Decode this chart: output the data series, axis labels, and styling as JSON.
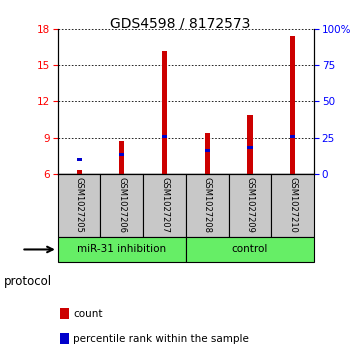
{
  "title": "GDS4598 / 8172573",
  "samples": [
    "GSM1027205",
    "GSM1027206",
    "GSM1027207",
    "GSM1027208",
    "GSM1027209",
    "GSM1027210"
  ],
  "red_values": [
    6.3,
    8.7,
    16.2,
    9.4,
    10.9,
    17.4
  ],
  "blue_values": [
    7.2,
    7.6,
    9.1,
    7.9,
    8.2,
    9.1
  ],
  "y_min": 6,
  "y_max": 18,
  "y_ticks_left": [
    6,
    9,
    12,
    15,
    18
  ],
  "y_ticks_right": [
    0,
    25,
    50,
    75,
    100
  ],
  "red_color": "#CC0000",
  "blue_color": "#0000CC",
  "green_color": "#66EE66",
  "gray_color": "#C8C8C8",
  "protocol_label": "protocol",
  "group_spans": [
    {
      "name": "miR-31 inhibition",
      "start": 0,
      "end": 3
    },
    {
      "name": "control",
      "start": 3,
      "end": 6
    }
  ],
  "legend_count": "count",
  "legend_percentile": "percentile rank within the sample",
  "bar_width": 0.12
}
